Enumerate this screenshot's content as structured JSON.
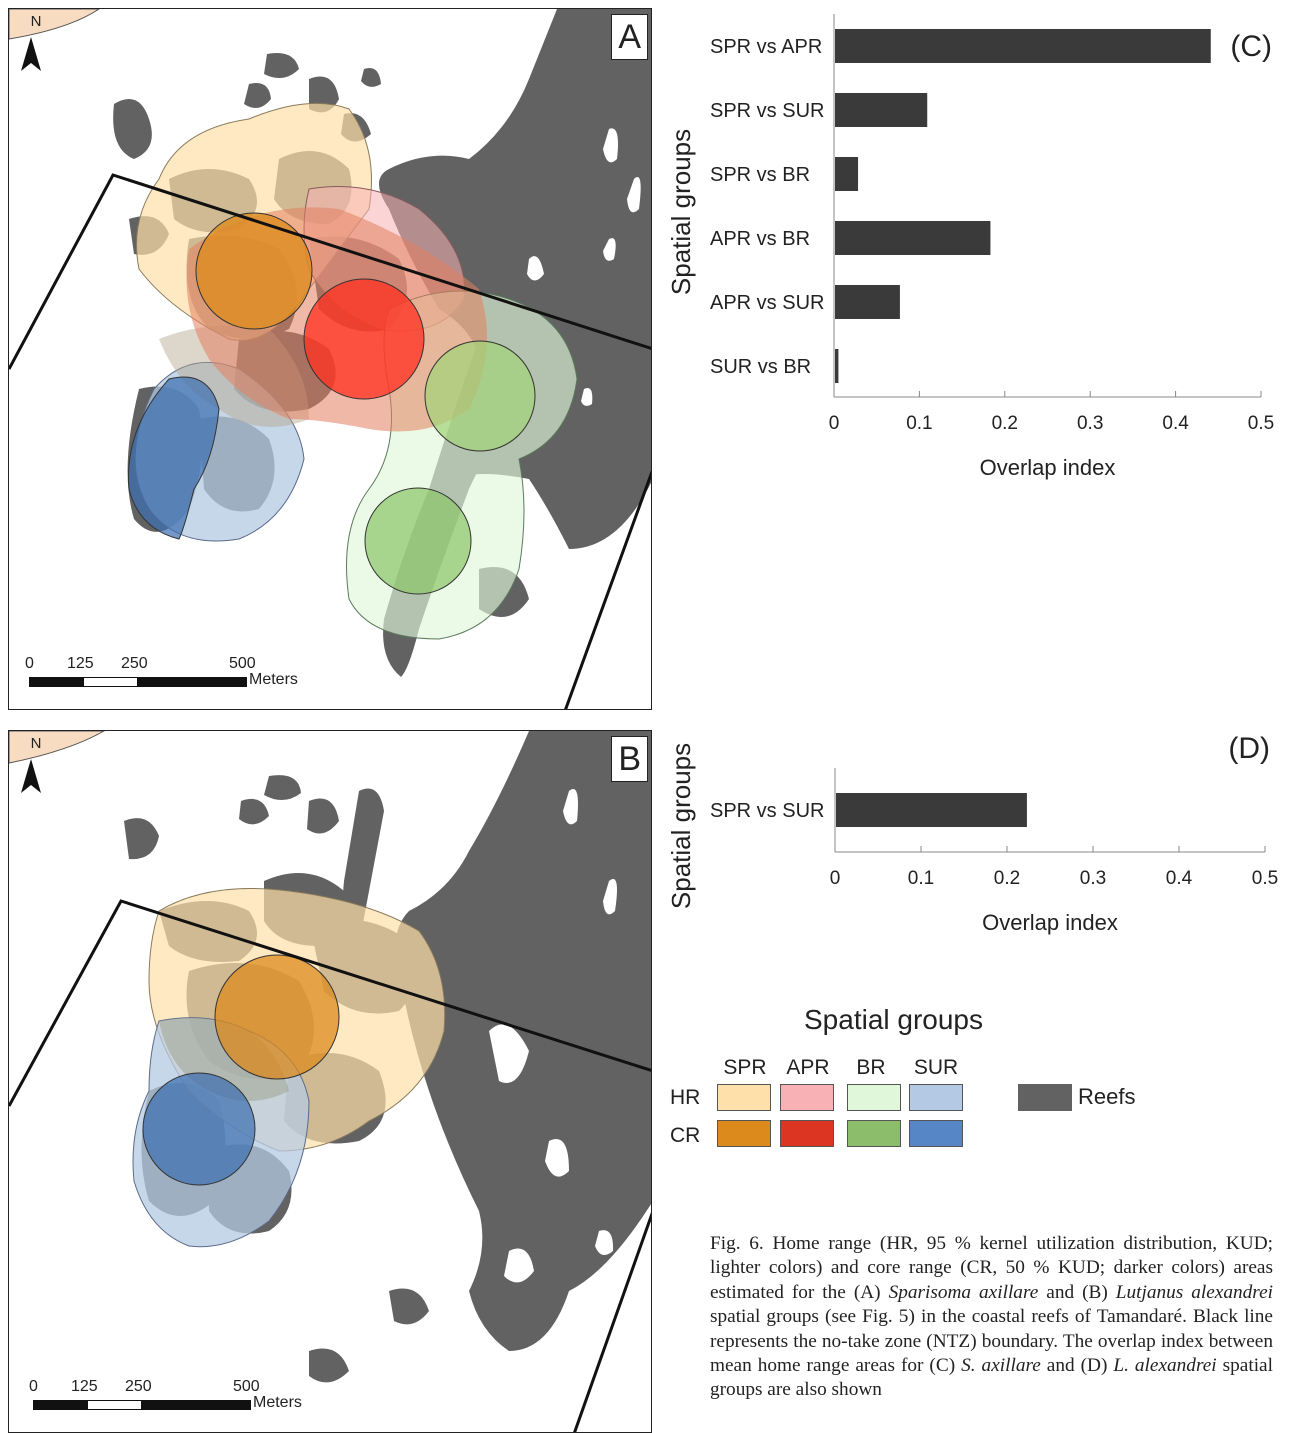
{
  "maps": {
    "a": {
      "panel_label": "A",
      "north": "N",
      "scale_ticks": [
        "0",
        "125",
        "250",
        "500"
      ],
      "scale_unit": "Meters"
    },
    "b": {
      "panel_label": "B",
      "north": "N",
      "scale_ticks": [
        "0",
        "125",
        "250",
        "500"
      ],
      "scale_unit": "Meters"
    }
  },
  "chart_data": [
    {
      "type": "bar",
      "panel": "(C)",
      "orientation": "horizontal",
      "categories": [
        "SPR vs APR",
        "SPR vs SUR",
        "SPR vs BR",
        "APR vs BR",
        "APR vs SUR",
        "SUR vs BR"
      ],
      "values": [
        0.44,
        0.108,
        0.027,
        0.182,
        0.076,
        0.004
      ],
      "xlabel": "Overlap index",
      "ylabel": "Spatial groups",
      "xlim": [
        0,
        0.5
      ],
      "xticks": [
        "0",
        "0.1",
        "0.2",
        "0.3",
        "0.4",
        "0.5"
      ],
      "bar_color": "#3a3a3a",
      "grid": false
    },
    {
      "type": "bar",
      "panel": "(D)",
      "orientation": "horizontal",
      "categories": [
        "SPR vs SUR"
      ],
      "values": [
        0.222
      ],
      "xlabel": "Overlap index",
      "ylabel": "Spatial groups",
      "xlim": [
        0,
        0.5
      ],
      "xticks": [
        "0",
        "0.1",
        "0.2",
        "0.3",
        "0.4",
        "0.5"
      ],
      "bar_color": "#3a3a3a",
      "grid": false
    }
  ],
  "legend": {
    "title": "Spatial groups",
    "columns": [
      "SPR",
      "APR",
      "BR",
      "SUR"
    ],
    "rows": [
      "HR",
      "CR"
    ],
    "hr_colors": [
      "#fde0aa",
      "#f8b1b4",
      "#e1f7d9",
      "#b4c9e3"
    ],
    "cr_colors": [
      "#dc8a1c",
      "#dc3521",
      "#8cbd6b",
      "#5686c6"
    ],
    "reef_label": "Reefs",
    "reef_color": "#626262"
  },
  "caption": {
    "p1": "Fig. 6. Home range (HR, 95 % kernel utilization distribution, KUD; lighter colors) and core range (CR, 50 % KUD; darker colors) areas estimated for the (A) ",
    "sp1": "Sparisoma axillare",
    "p2": " and (B) ",
    "sp2": "Lutjanus alexandrei",
    "p3": " spatial groups (see Fig. 5) in the coastal reefs of Tamandaré. Black line represents the no-take zone (NTZ) boundary. The overlap index between mean home range areas for (C) ",
    "sp3": "S. axillare",
    "p4": " and (D) ",
    "sp4": "L. alexandrei",
    "p5": " spatial groups are also shown"
  }
}
